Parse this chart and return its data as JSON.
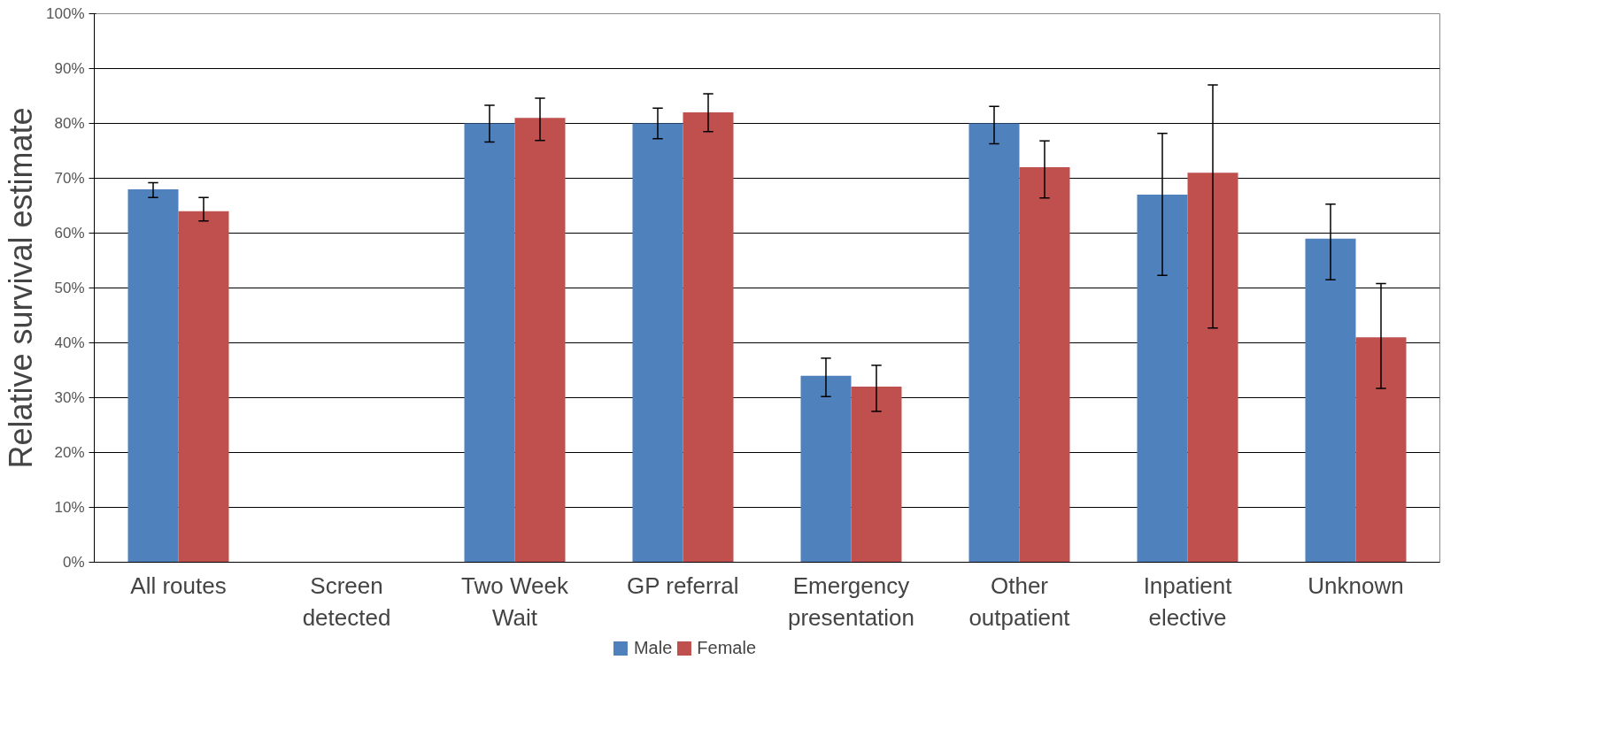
{
  "chart_data": {
    "type": "bar",
    "ylabel": "Relative survival estimate",
    "categories": [
      "All routes",
      "Screen\ndetected",
      "Two Week\nWait",
      "GP referral",
      "Emergency\npresentation",
      "Other\noutpatient",
      "Inpatient\nelective",
      "Unknown"
    ],
    "series": [
      {
        "name": "Male",
        "color": "#4f81bd",
        "values": [
          68,
          null,
          80,
          80,
          34,
          80,
          67,
          59
        ],
        "errors": [
          [
            66.5,
            69.2
          ],
          null,
          [
            76.6,
            83.3
          ],
          [
            77.2,
            82.8
          ],
          [
            30.2,
            37.2
          ],
          [
            76.3,
            83.1
          ],
          [
            52.3,
            78.2
          ],
          [
            51.5,
            65.3
          ]
        ]
      },
      {
        "name": "Female",
        "color": "#c0504d",
        "values": [
          64,
          null,
          81,
          82,
          32,
          72,
          71,
          41
        ],
        "errors": [
          [
            62.2,
            66.5
          ],
          null,
          [
            76.9,
            84.6
          ],
          [
            78.5,
            85.4
          ],
          [
            27.5,
            35.9
          ],
          [
            66.4,
            76.8
          ],
          [
            42.7,
            87.0
          ],
          [
            31.7,
            50.8
          ]
        ]
      }
    ],
    "ylim": [
      0,
      100
    ],
    "yticks": [
      {
        "value": 0,
        "label": "0%"
      },
      {
        "value": 10,
        "label": "10%"
      },
      {
        "value": 20,
        "label": "20%"
      },
      {
        "value": 30,
        "label": "30%"
      },
      {
        "value": 40,
        "label": "40%"
      },
      {
        "value": 50,
        "label": "50%"
      },
      {
        "value": 60,
        "label": "60%"
      },
      {
        "value": 70,
        "label": "70%"
      },
      {
        "value": 80,
        "label": "80%"
      },
      {
        "value": 90,
        "label": "90%"
      },
      {
        "value": 100,
        "label": "100%"
      }
    ],
    "grid": "y",
    "legend": "bottom"
  }
}
